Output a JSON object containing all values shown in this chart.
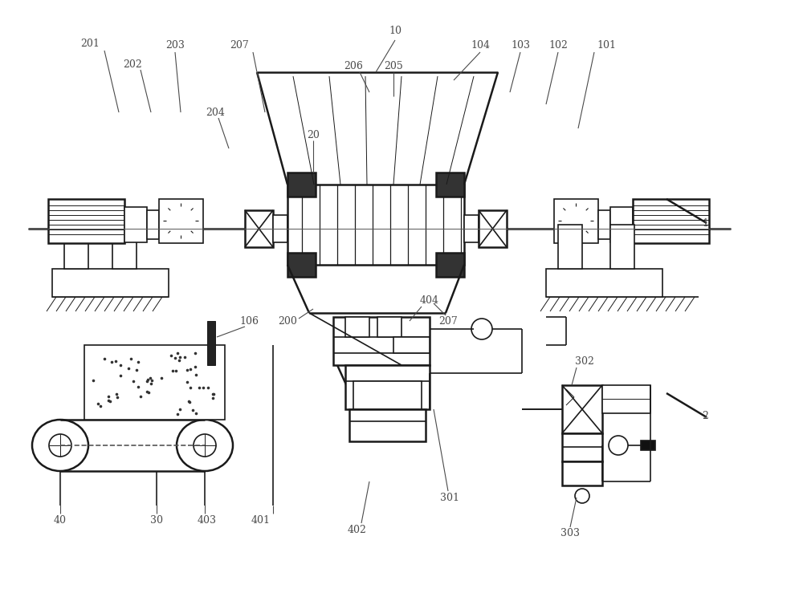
{
  "bg_color": "#ffffff",
  "line_color": "#1a1a1a",
  "label_color": "#4a4a4a",
  "fig_width": 10.0,
  "fig_height": 7.39,
  "dpi": 100
}
